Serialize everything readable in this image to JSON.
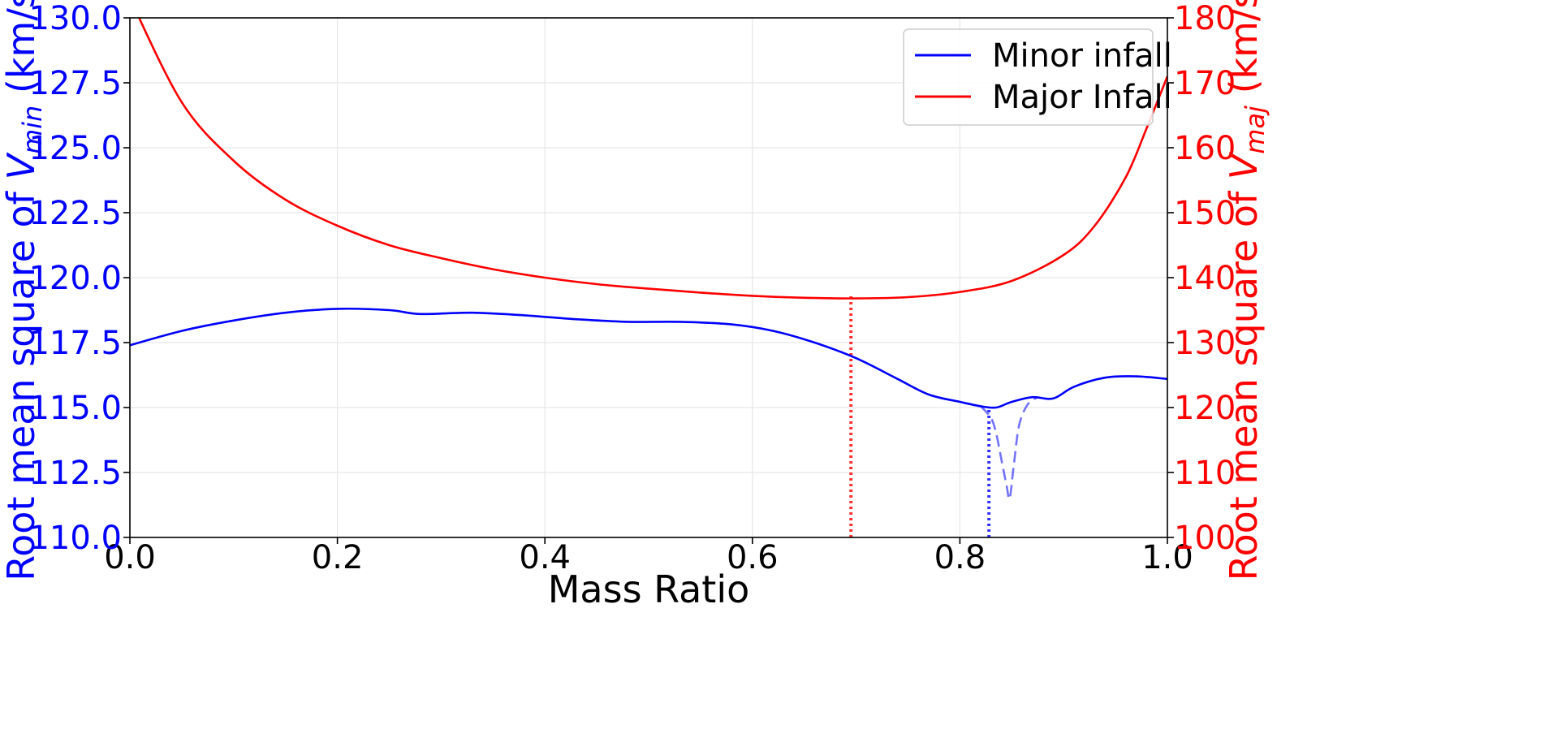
{
  "chart_data": {
    "type": "line",
    "xlabel": "Mass Ratio",
    "ylabel_left": {
      "prefix": "Root mean square of ",
      "var": "V",
      "sub": "min",
      "suffix": " (km/s)"
    },
    "ylabel_right": {
      "prefix": "Root mean square of ",
      "var": "V",
      "sub": "maj",
      "suffix": " (km/s)"
    },
    "xlim": [
      0.0,
      1.0
    ],
    "ylim_left": [
      110.0,
      130.0
    ],
    "ylim_right": [
      100,
      180
    ],
    "xticks": [
      "0.0",
      "0.2",
      "0.4",
      "0.6",
      "0.8",
      "1.0"
    ],
    "yticks_left": [
      "110.0",
      "112.5",
      "115.0",
      "117.5",
      "120.0",
      "122.5",
      "125.0",
      "127.5",
      "130.0"
    ],
    "yticks_right": [
      "100",
      "110",
      "120",
      "130",
      "140",
      "150",
      "160",
      "170",
      "180"
    ],
    "grid": true,
    "legend_position": "top-right",
    "colors": {
      "minor": "#0000ff",
      "major": "#ff0000"
    },
    "series": [
      {
        "name": "Minor infall",
        "axis": "left",
        "x": [
          0.0,
          0.05,
          0.1,
          0.15,
          0.2,
          0.25,
          0.28,
          0.33,
          0.38,
          0.43,
          0.48,
          0.53,
          0.58,
          0.62,
          0.66,
          0.7,
          0.74,
          0.77,
          0.8,
          0.82,
          0.835,
          0.85,
          0.87,
          0.89,
          0.91,
          0.94,
          0.97,
          1.0
        ],
        "y": [
          117.4,
          117.95,
          118.35,
          118.65,
          118.8,
          118.75,
          118.6,
          118.65,
          118.55,
          118.4,
          118.3,
          118.3,
          118.2,
          117.95,
          117.5,
          116.9,
          116.1,
          115.5,
          115.22,
          115.05,
          115.0,
          115.22,
          115.4,
          115.35,
          115.8,
          116.15,
          116.2,
          116.1
        ]
      },
      {
        "name": "Major Infall",
        "axis": "right",
        "x": [
          0.0,
          0.05,
          0.1,
          0.15,
          0.2,
          0.25,
          0.3,
          0.35,
          0.4,
          0.45,
          0.5,
          0.55,
          0.6,
          0.65,
          0.7,
          0.75,
          0.8,
          0.85,
          0.9,
          0.93,
          0.96,
          0.98,
          1.0
        ],
        "y": [
          183,
          167,
          158,
          152,
          148,
          145,
          143,
          141.3,
          140,
          139,
          138.3,
          137.7,
          137.2,
          136.9,
          136.8,
          137,
          137.8,
          139.5,
          143.5,
          148,
          155.5,
          163,
          171
        ]
      },
      {
        "axis": "left",
        "style": "dashed",
        "x": [
          0.82,
          0.83,
          0.835,
          0.84,
          0.845,
          0.848,
          0.852,
          0.857,
          0.865,
          0.875
        ],
        "y": [
          115.05,
          114.6,
          114.0,
          113.0,
          112.0,
          111.5,
          112.8,
          114.3,
          115.1,
          115.4
        ]
      }
    ],
    "vlines": [
      {
        "x": 0.695,
        "ymin": 110.0,
        "ymax": 119.3,
        "color": "#ff0000",
        "style": "dotted"
      },
      {
        "x": 0.828,
        "ymin": 110.0,
        "ymax": 115.0,
        "color": "#0000ff",
        "style": "dotted"
      }
    ]
  }
}
